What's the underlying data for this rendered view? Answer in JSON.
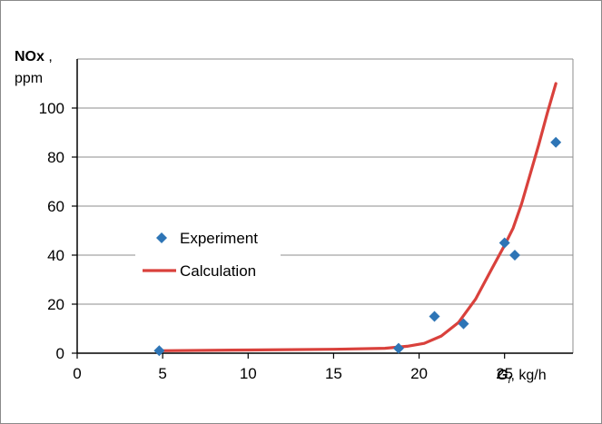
{
  "chart_data": {
    "type": "scatter",
    "title": "",
    "ylabel_main": "NOx",
    "ylabel_sep": " ,",
    "ylabel_unit": "ppm",
    "xlabel_symbol": "G",
    "xlabel_subscript": "f",
    "xlabel_unit": ", kg/h",
    "xlim": [
      0,
      29
    ],
    "ylim": [
      0,
      100
    ],
    "x_ticks": [
      0,
      5,
      10,
      15,
      20,
      25
    ],
    "y_ticks": [
      0,
      20,
      40,
      60,
      80,
      100
    ],
    "grid": "horizontal",
    "legend_position": "center-left",
    "series": [
      {
        "name": "Experiment",
        "kind": "scatter",
        "marker": "diamond",
        "color": "#2e75b6",
        "points": [
          {
            "x": 4.8,
            "y": 1
          },
          {
            "x": 18.8,
            "y": 2
          },
          {
            "x": 20.9,
            "y": 15
          },
          {
            "x": 22.6,
            "y": 12
          },
          {
            "x": 25.0,
            "y": 45
          },
          {
            "x": 25.6,
            "y": 40
          },
          {
            "x": 28.0,
            "y": 86
          }
        ]
      },
      {
        "name": "Calculation",
        "kind": "line",
        "color": "#d9413c",
        "points": [
          {
            "x": 4.8,
            "y": 1
          },
          {
            "x": 10,
            "y": 1.3
          },
          {
            "x": 15,
            "y": 1.6
          },
          {
            "x": 18,
            "y": 2
          },
          {
            "x": 19.3,
            "y": 2.8
          },
          {
            "x": 20.3,
            "y": 4
          },
          {
            "x": 21.3,
            "y": 7
          },
          {
            "x": 22.3,
            "y": 12.5
          },
          {
            "x": 23.3,
            "y": 22
          },
          {
            "x": 24.3,
            "y": 35
          },
          {
            "x": 25.0,
            "y": 44
          },
          {
            "x": 25.5,
            "y": 51
          },
          {
            "x": 26.0,
            "y": 61
          },
          {
            "x": 26.5,
            "y": 73
          },
          {
            "x": 27.0,
            "y": 85
          },
          {
            "x": 27.5,
            "y": 98
          },
          {
            "x": 28.0,
            "y": 110
          }
        ]
      }
    ]
  }
}
